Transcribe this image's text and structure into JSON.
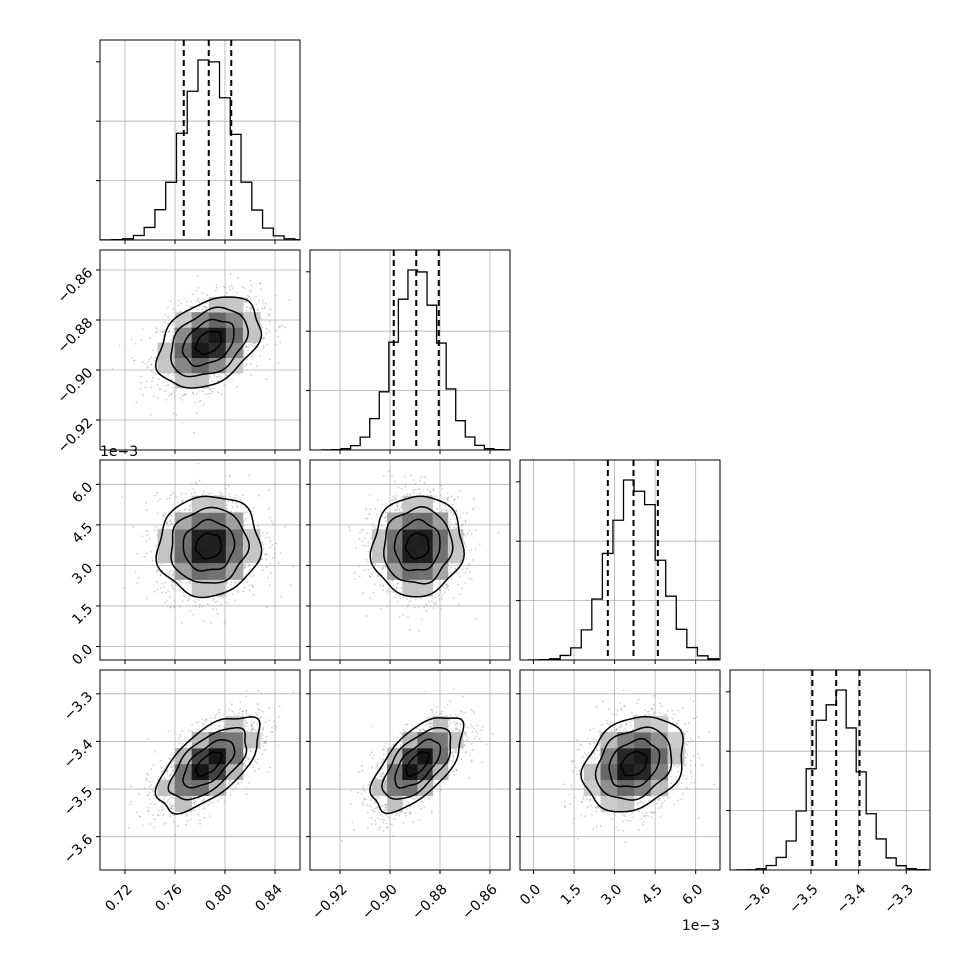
{
  "chart_data": {
    "type": "corner",
    "parameters": [
      {
        "index": 0,
        "ticks": [
          0.72,
          0.76,
          0.8,
          0.84
        ],
        "tick_labels": [
          "0.72",
          "0.76",
          "0.80",
          "0.84"
        ],
        "range": [
          0.7,
          0.86
        ],
        "offset_label": "",
        "quantiles": [
          0.767,
          0.787,
          0.805
        ],
        "hist_peak": 0.787,
        "hist_sigma": 0.0205
      },
      {
        "index": 1,
        "ticks": [
          -0.92,
          -0.9,
          -0.88,
          -0.86
        ],
        "tick_labels": [
          "−0.92",
          "−0.90",
          "−0.88",
          "−0.86"
        ],
        "range": [
          -0.932,
          -0.852
        ],
        "offset_label": "",
        "quantiles": [
          -0.8985,
          -0.8895,
          -0.8805
        ],
        "hist_peak": -0.889,
        "hist_sigma": 0.0091
      },
      {
        "index": 2,
        "ticks": [
          0.0,
          1.5,
          3.0,
          4.5,
          6.0
        ],
        "tick_labels": [
          "0.0",
          "1.5",
          "3.0",
          "4.5",
          "6.0"
        ],
        "range": [
          -0.5,
          6.9
        ],
        "offset_label": "1e−3",
        "quantiles": [
          2.75,
          3.7,
          4.6
        ],
        "hist_peak": 3.72,
        "hist_sigma": 0.93
      },
      {
        "index": 3,
        "ticks": [
          -3.6,
          -3.5,
          -3.4,
          -3.3
        ],
        "tick_labels": [
          "−3.6",
          "−3.5",
          "−3.4",
          "−3.3"
        ],
        "range": [
          -3.67,
          -3.25
        ],
        "offset_label": "",
        "quantiles": [
          -3.497,
          -3.447,
          -3.398
        ],
        "hist_peak": -3.447,
        "hist_sigma": 0.05
      }
    ],
    "histogram_bins": 20,
    "correlations": [
      {
        "row": 1,
        "col": 0,
        "rho": 0.35
      },
      {
        "row": 2,
        "col": 0,
        "rho": 0.05
      },
      {
        "row": 2,
        "col": 1,
        "rho": 0.05
      },
      {
        "row": 3,
        "col": 0,
        "rho": 0.62
      },
      {
        "row": 3,
        "col": 1,
        "rho": 0.62
      },
      {
        "row": 3,
        "col": 2,
        "rho": 0.25
      }
    ],
    "offset_labels": [
      {
        "row": 1,
        "col": 0,
        "axis": "y-of-row-2",
        "text": "1e−3"
      },
      {
        "row": 3,
        "col": 2,
        "axis": "x",
        "text": "1e−3"
      }
    ],
    "contour_levels_sigma": [
      0.5,
      1.0,
      1.5,
      2.0
    ],
    "grid": true,
    "colors": {
      "histogram": "#000000",
      "contour": "#000000",
      "scatter": "#9a9a9a",
      "grid": "#b0b0b0",
      "density_max": "#000000",
      "density_min": "#ffffff"
    }
  }
}
